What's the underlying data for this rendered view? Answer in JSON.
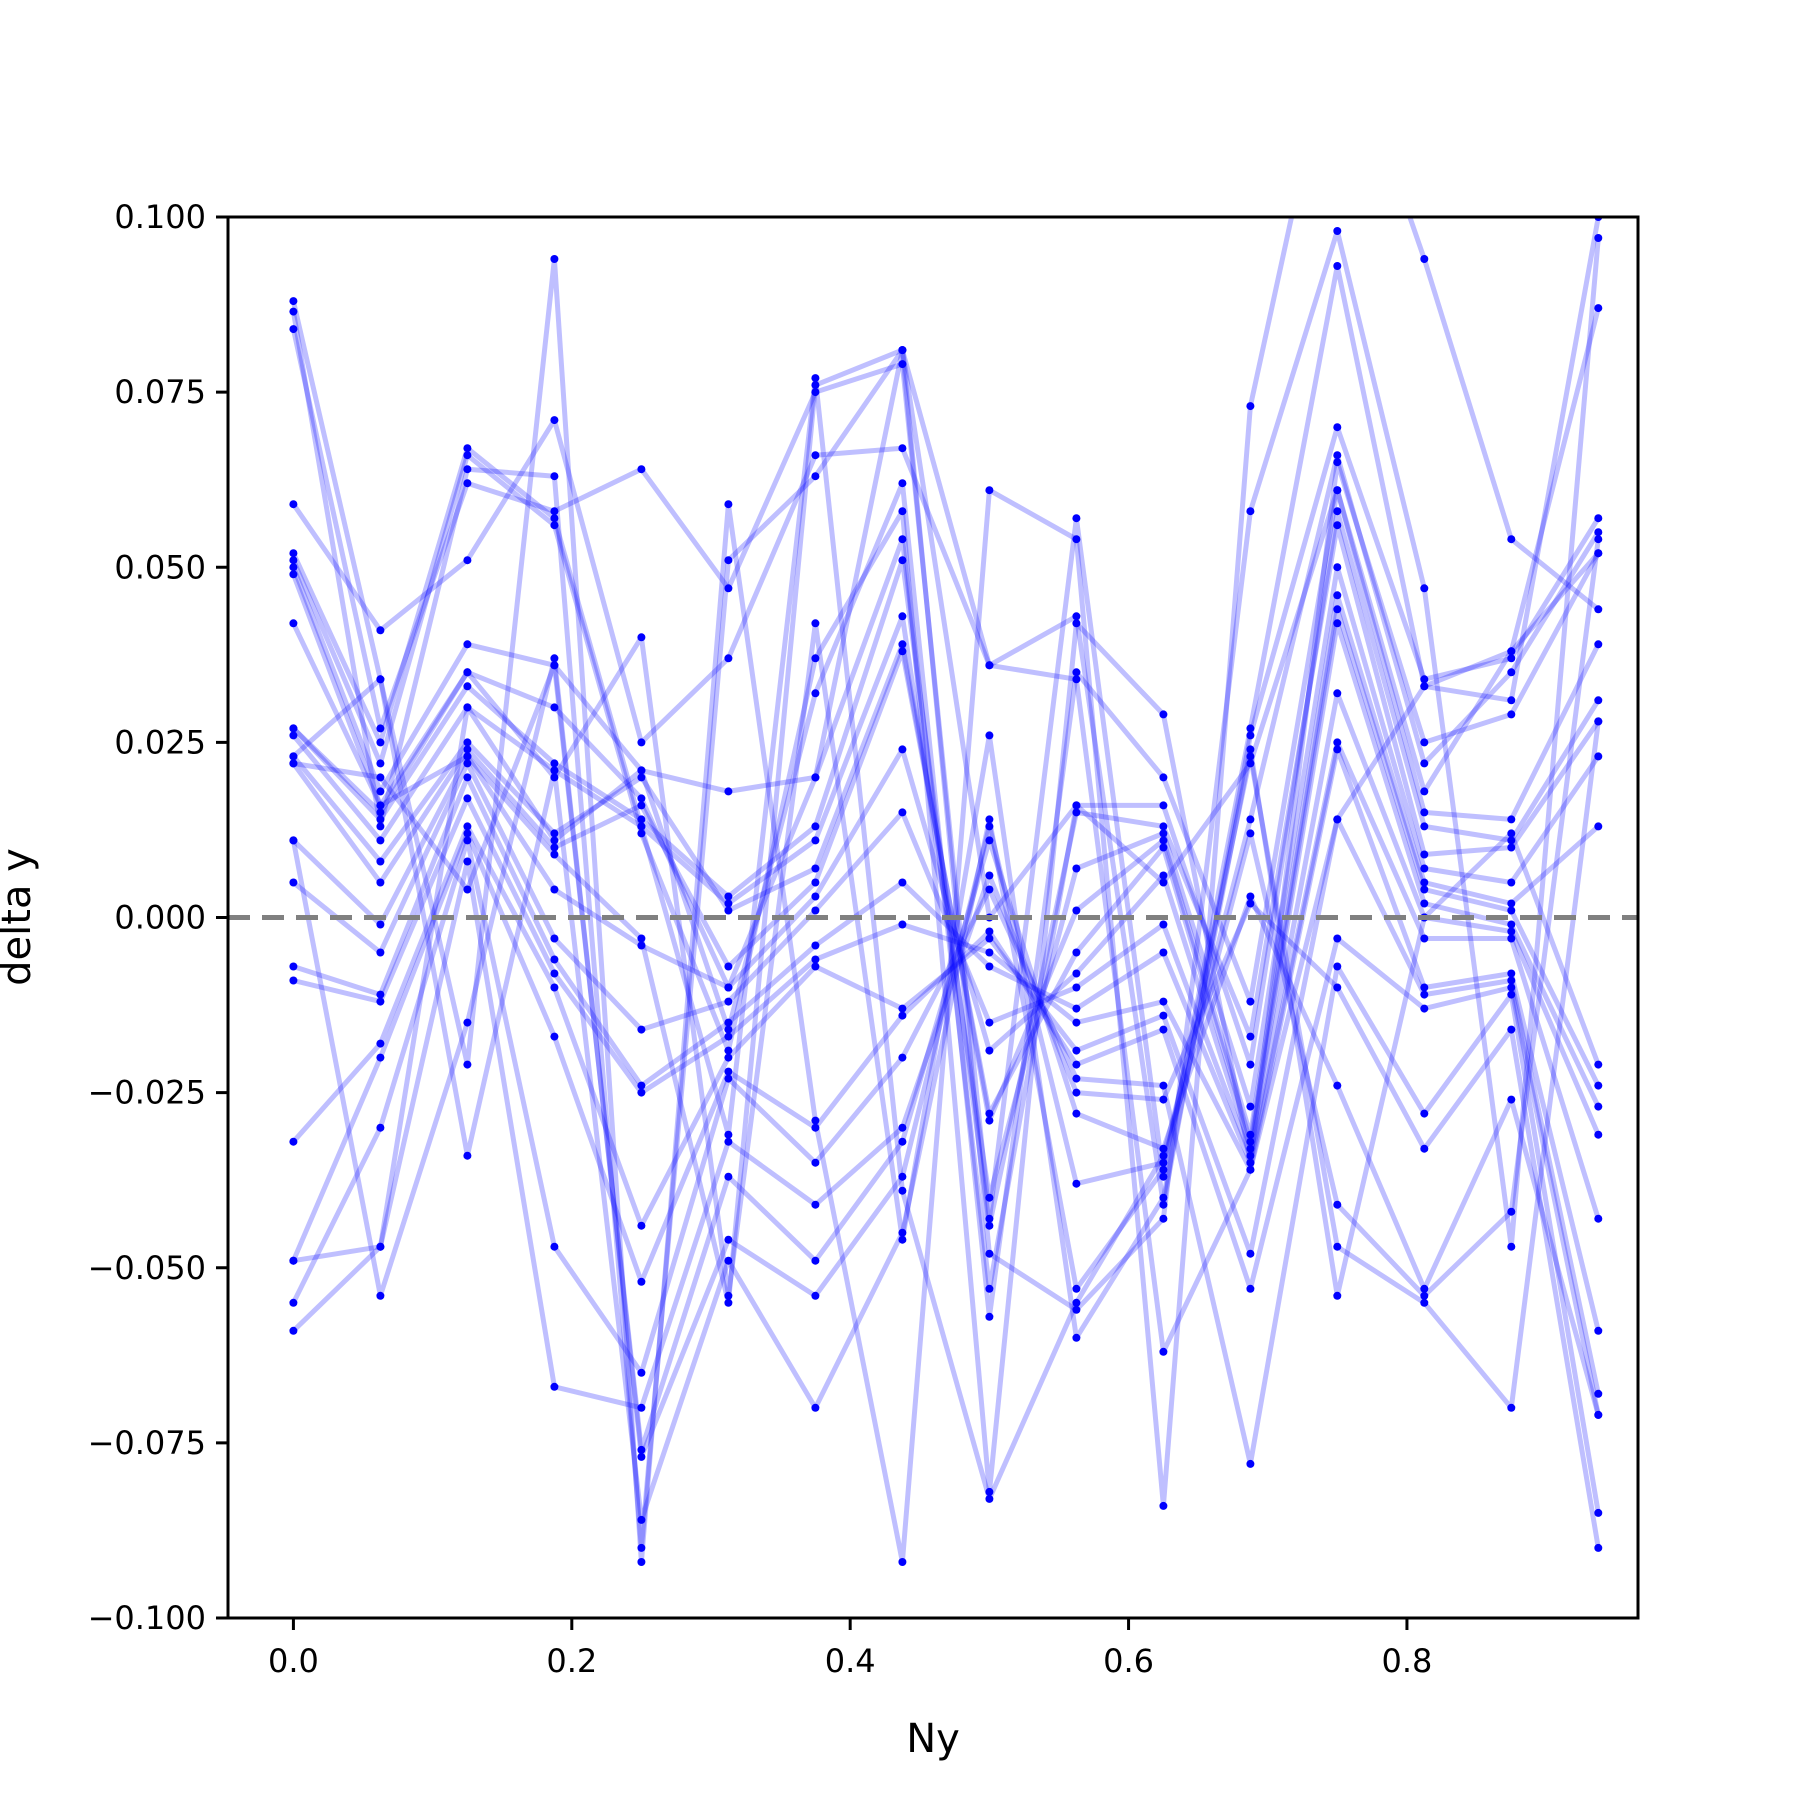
{
  "chart_data": {
    "type": "line",
    "title": "",
    "xlabel": "Ny",
    "ylabel": "delta y",
    "xlim": [
      -0.047,
      0.966
    ],
    "ylim": [
      -0.1,
      0.1
    ],
    "x_ticks": [
      0.0,
      0.2,
      0.4,
      0.6,
      0.8
    ],
    "x_tick_labels": [
      "0.0",
      "0.2",
      "0.4",
      "0.6",
      "0.8"
    ],
    "y_ticks": [
      -0.1,
      -0.075,
      -0.05,
      -0.025,
      0.0,
      0.025,
      0.05,
      0.075,
      0.1
    ],
    "y_tick_labels": [
      "−0.100",
      "−0.075",
      "−0.050",
      "−0.025",
      "0.000",
      "0.025",
      "0.050",
      "0.075",
      "0.100"
    ],
    "grid": false,
    "legend": "none",
    "reference_line": {
      "y": 0.0,
      "style": "dashed",
      "color": "#808080"
    },
    "line_color": "#0000ff",
    "line_alpha": 0.25,
    "x": [
      0.0,
      0.0625,
      0.125,
      0.1875,
      0.25,
      0.3125,
      0.375,
      0.4375,
      0.5,
      0.5625,
      0.625,
      0.6875,
      0.75,
      0.8125,
      0.875,
      0.9375
    ],
    "series": [
      {
        "values": [
          0.088,
          0.034,
          -0.021,
          0.094,
          -0.092,
          0.059,
          -0.029,
          -0.092,
          0.061,
          0.054,
          -0.084,
          0.073,
          0.13,
          0.094,
          0.054,
          0.044
        ]
      },
      {
        "values": [
          0.0865,
          0.013,
          0.064,
          0.063,
          -0.09,
          0.051,
          0.063,
          0.081,
          -0.048,
          -0.056,
          -0.043,
          0.058,
          0.098,
          0.047,
          -0.047,
          0.097
        ]
      },
      {
        "values": [
          0.084,
          0.027,
          0.062,
          0.058,
          0.064,
          0.047,
          0.075,
          0.079,
          -0.043,
          0.057,
          -0.037,
          0.027,
          0.093,
          0.033,
          0.038,
          0.087
        ]
      },
      {
        "values": [
          0.059,
          0.041,
          0.051,
          0.071,
          0.025,
          0.037,
          0.066,
          0.067,
          0.036,
          0.043,
          -0.041,
          0.026,
          0.07,
          0.034,
          0.037,
          0.057
        ]
      },
      {
        "values": [
          0.052,
          0.025,
          0.067,
          0.057,
          0.013,
          -0.031,
          0.077,
          -0.039,
          -0.083,
          -0.055,
          -0.034,
          0.014,
          0.066,
          0.022,
          0.035,
          0.055
        ]
      },
      {
        "values": [
          0.051,
          0.022,
          0.066,
          0.056,
          0.012,
          -0.019,
          0.037,
          0.058,
          -0.082,
          0.042,
          0.029,
          -0.035,
          0.065,
          0.025,
          0.029,
          0.052
        ]
      },
      {
        "values": [
          0.05,
          0.018,
          0.039,
          0.036,
          0.021,
          -0.016,
          0.032,
          0.062,
          -0.057,
          0.035,
          0.02,
          -0.012,
          0.061,
          0.015,
          0.014,
          0.039
        ]
      },
      {
        "values": [
          0.042,
          0.016,
          0.035,
          0.03,
          0.017,
          -0.01,
          0.02,
          0.054,
          -0.053,
          0.016,
          0.016,
          -0.021,
          0.058,
          0.013,
          0.011,
          0.031
        ]
      },
      {
        "values": [
          0.027,
          0.014,
          0.033,
          0.022,
          0.014,
          0.003,
          0.013,
          0.051,
          -0.044,
          0.015,
          0.013,
          -0.017,
          0.056,
          0.009,
          0.01,
          0.028
        ]
      },
      {
        "values": [
          0.026,
          0.011,
          0.03,
          0.021,
          0.013,
          0.002,
          0.011,
          0.043,
          -0.04,
          0.007,
          0.012,
          -0.027,
          0.05,
          0.007,
          0.005,
          0.023
        ]
      },
      {
        "values": [
          0.023,
          0.008,
          0.025,
          0.012,
          0.02,
          0.001,
          0.007,
          0.039,
          -0.029,
          0.001,
          0.011,
          -0.031,
          0.046,
          0.005,
          0.002,
          0.013
        ]
      },
      {
        "values": [
          0.022,
          0.005,
          0.024,
          0.01,
          0.016,
          -0.007,
          0.005,
          0.038,
          -0.028,
          -0.005,
          0.01,
          -0.032,
          0.044,
          0.004,
          0.001,
          -0.024
        ]
      },
      {
        "values": [
          0.011,
          -0.001,
          0.023,
          0.004,
          -0.004,
          -0.01,
          0.003,
          0.024,
          -0.019,
          -0.008,
          0.006,
          -0.033,
          0.042,
          0.002,
          -0.001,
          -0.027
        ]
      },
      {
        "values": [
          0.005,
          -0.005,
          0.022,
          -0.003,
          -0.016,
          -0.012,
          0.001,
          0.015,
          -0.015,
          -0.01,
          -0.001,
          -0.034,
          0.032,
          0.0,
          -0.002,
          -0.031
        ]
      },
      {
        "values": [
          -0.007,
          -0.011,
          0.02,
          -0.006,
          -0.024,
          -0.015,
          -0.004,
          0.005,
          -0.007,
          -0.013,
          -0.005,
          -0.035,
          0.025,
          -0.003,
          -0.003,
          -0.043
        ]
      },
      {
        "values": [
          -0.009,
          -0.012,
          0.017,
          -0.008,
          -0.025,
          -0.017,
          -0.006,
          -0.001,
          -0.005,
          -0.015,
          -0.012,
          -0.036,
          0.024,
          -0.01,
          -0.008,
          -0.059
        ]
      },
      {
        "values": [
          -0.032,
          -0.018,
          0.013,
          -0.01,
          -0.044,
          -0.02,
          -0.007,
          -0.013,
          -0.003,
          -0.019,
          -0.014,
          -0.048,
          0.014,
          -0.011,
          -0.009,
          -0.068
        ]
      },
      {
        "values": [
          -0.049,
          -0.02,
          0.012,
          -0.017,
          -0.052,
          -0.022,
          -0.03,
          -0.014,
          -0.002,
          -0.021,
          -0.016,
          -0.053,
          -0.003,
          -0.013,
          -0.01,
          -0.071
        ]
      },
      {
        "values": [
          -0.055,
          -0.03,
          0.011,
          -0.047,
          -0.065,
          -0.023,
          -0.035,
          -0.02,
          0.004,
          -0.023,
          -0.024,
          -0.078,
          -0.007,
          -0.028,
          -0.011,
          -0.085
        ]
      },
      {
        "values": [
          -0.059,
          -0.047,
          0.008,
          -0.067,
          -0.07,
          -0.032,
          -0.041,
          -0.03,
          0.006,
          -0.025,
          -0.026,
          0.002,
          -0.01,
          -0.033,
          -0.016,
          -0.09
        ]
      },
      {
        "values": [
          0.022,
          0.02,
          0.004,
          0.036,
          -0.076,
          -0.037,
          -0.049,
          -0.032,
          0.011,
          -0.028,
          -0.033,
          0.003,
          -0.024,
          -0.053,
          -0.026,
          -0.071
        ]
      },
      {
        "values": [
          0.011,
          -0.054,
          -0.015,
          0.037,
          -0.077,
          -0.046,
          -0.054,
          -0.037,
          0.013,
          -0.038,
          -0.035,
          0.012,
          -0.041,
          -0.054,
          -0.042,
          0.054
        ]
      },
      {
        "values": [
          0.023,
          0.034,
          -0.034,
          0.021,
          -0.086,
          -0.049,
          -0.07,
          -0.045,
          0.014,
          -0.053,
          -0.036,
          0.023,
          -0.047,
          -0.055,
          -0.07,
          0.028
        ]
      },
      {
        "values": [
          0.027,
          0.015,
          0.035,
          0.02,
          0.04,
          -0.054,
          0.042,
          -0.046,
          0.026,
          -0.06,
          -0.04,
          0.024,
          -0.054,
          0.0,
          0.012,
          -0.021
        ]
      },
      {
        "values": [
          -0.049,
          -0.047,
          0.03,
          0.011,
          0.021,
          0.018,
          0.02,
          0.081,
          0.036,
          0.034,
          -0.062,
          -0.036,
          0.014,
          0.033,
          0.031,
          0.1
        ]
      },
      {
        "values": [
          0.049,
          0.016,
          0.023,
          0.009,
          -0.003,
          -0.055,
          0.076,
          0.081,
          0.0,
          0.016,
          0.005,
          0.022,
          0.061,
          0.018,
          0.038,
          0.052
        ]
      }
    ]
  }
}
